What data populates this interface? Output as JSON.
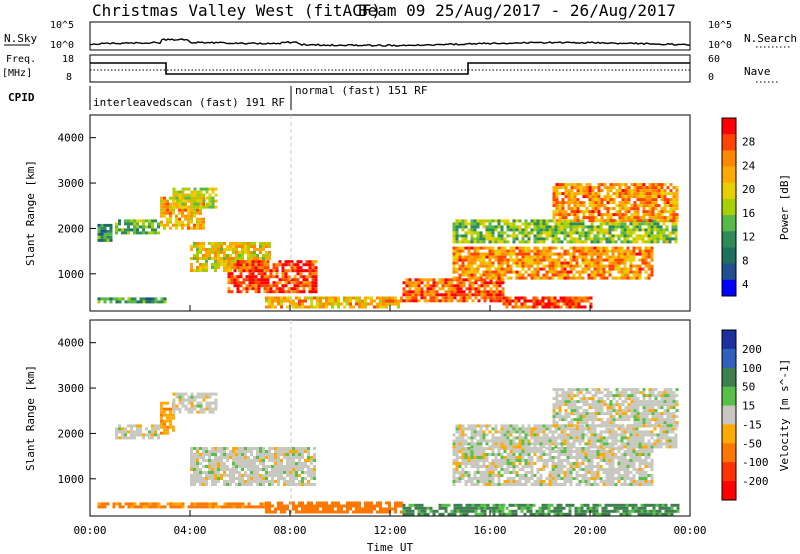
{
  "header": {
    "title": "Christmas Valley West (fitACF)",
    "beam": "Beam 09 25/Aug/2017 - 26/Aug/2017"
  },
  "nsky_panel": {
    "left_label": "N.Sky",
    "left_ticks": [
      "10^5",
      "10^0"
    ],
    "right_label": "N.Search",
    "right_ticks": [
      "10^5",
      "10^0"
    ]
  },
  "freq_panel": {
    "left_label_1": "Freq.",
    "left_label_2": "[MHz]",
    "left_ticks": [
      "18",
      "8"
    ],
    "right_label": "Nave",
    "right_ticks": [
      "60",
      "0"
    ]
  },
  "cpid": {
    "label": "CPID",
    "modes": [
      {
        "text": "interleavedscan (fast) 191 RF"
      },
      {
        "text": "normal (fast) 151 RF"
      }
    ]
  },
  "axes": {
    "ylabel": "Slant Range [km]",
    "yticks": [
      "4000",
      "3000",
      "2000",
      "1000"
    ],
    "xlabel": "Time UT",
    "xticks": [
      "00:00",
      "04:00",
      "08:00",
      "12:00",
      "16:00",
      "20:00",
      "00:00"
    ]
  },
  "power_scale": {
    "label": "Power [dB]",
    "ticks": [
      "28",
      "24",
      "20",
      "16",
      "12",
      "8",
      "4"
    ],
    "colors": [
      "#ff0000",
      "#ff4400",
      "#ff8800",
      "#ffaa00",
      "#e8d000",
      "#a8d000",
      "#58b848",
      "#2e8b57",
      "#1f6f5f",
      "#1f4f8f",
      "#0000ff"
    ]
  },
  "velocity_scale": {
    "label": "Velocity [m s^-1]",
    "ticks": [
      "200",
      "100",
      "50",
      "15",
      "-15",
      "-50",
      "-100",
      "-200"
    ],
    "colors": [
      "#1e2fa0",
      "#2f5fbf",
      "#3f7f4f",
      "#58c048",
      "#c8c8c0",
      "#ffaa00",
      "#ff7700",
      "#ff3300",
      "#ff0000"
    ]
  },
  "chart_data": [
    {
      "type": "heatmap",
      "title": "Power",
      "xlabel": "Time UT",
      "ylabel": "Slant Range [km]",
      "ylim": [
        180,
        4500
      ],
      "xlim": [
        0,
        24
      ],
      "colorbar_label": "Power [dB]",
      "colorbar_ticks": [
        4,
        8,
        12,
        16,
        20,
        24,
        28
      ],
      "regions": [
        {
          "t0": 0.3,
          "t1": 3.0,
          "r0": 350,
          "r1": 480,
          "power": 10
        },
        {
          "t0": 0.3,
          "t1": 0.8,
          "r0": 1750,
          "r1": 2100,
          "power": 10
        },
        {
          "t0": 1.0,
          "t1": 2.8,
          "r0": 1900,
          "r1": 2200,
          "power": 12
        },
        {
          "t0": 2.8,
          "t1": 4.5,
          "r0": 2000,
          "r1": 2700,
          "power": 20
        },
        {
          "t0": 3.3,
          "t1": 5.1,
          "r0": 2500,
          "r1": 2900,
          "power": 16
        },
        {
          "t0": 4.0,
          "t1": 7.2,
          "r0": 1100,
          "r1": 1700,
          "power": 18
        },
        {
          "t0": 5.5,
          "t1": 9.0,
          "r0": 600,
          "r1": 1300,
          "power": 26
        },
        {
          "t0": 7.0,
          "t1": 12.5,
          "r0": 250,
          "r1": 500,
          "power": 20
        },
        {
          "t0": 12.5,
          "t1": 16.5,
          "r0": 400,
          "r1": 900,
          "power": 24
        },
        {
          "t0": 14.5,
          "t1": 22.5,
          "r0": 900,
          "r1": 1600,
          "power": 22
        },
        {
          "t0": 14.5,
          "t1": 23.5,
          "r0": 1700,
          "r1": 2200,
          "power": 14
        },
        {
          "t0": 18.5,
          "t1": 23.5,
          "r0": 2200,
          "r1": 3000,
          "power": 22
        },
        {
          "t0": 16.5,
          "t1": 20.0,
          "r0": 250,
          "r1": 500,
          "power": 26
        }
      ]
    },
    {
      "type": "heatmap",
      "title": "Velocity",
      "xlabel": "Time UT",
      "ylabel": "Slant Range [km]",
      "ylim": [
        180,
        4500
      ],
      "xlim": [
        0,
        24
      ],
      "colorbar_label": "Velocity [m s^-1]",
      "colorbar_ticks": [
        -200,
        -100,
        -50,
        -15,
        15,
        50,
        100,
        200
      ],
      "regions": [
        {
          "t0": 0.3,
          "t1": 7.0,
          "r0": 350,
          "r1": 480,
          "velocity": -60
        },
        {
          "t0": 1.0,
          "t1": 2.8,
          "r0": 1900,
          "r1": 2200,
          "velocity": 0
        },
        {
          "t0": 2.8,
          "t1": 3.3,
          "r0": 2000,
          "r1": 2700,
          "velocity": -40
        },
        {
          "t0": 3.3,
          "t1": 5.1,
          "r0": 2500,
          "r1": 2900,
          "velocity": 0
        },
        {
          "t0": 4.0,
          "t1": 9.0,
          "r0": 900,
          "r1": 1700,
          "velocity": 0
        },
        {
          "t0": 7.0,
          "t1": 12.5,
          "r0": 250,
          "r1": 500,
          "velocity": -80
        },
        {
          "t0": 12.5,
          "t1": 16.5,
          "r0": 250,
          "r1": 450,
          "velocity": 40
        },
        {
          "t0": 14.5,
          "t1": 22.5,
          "r0": 900,
          "r1": 1700,
          "velocity": 0
        },
        {
          "t0": 14.5,
          "t1": 23.5,
          "r0": 1700,
          "r1": 2200,
          "velocity": 0
        },
        {
          "t0": 18.5,
          "t1": 23.5,
          "r0": 2200,
          "r1": 3000,
          "velocity": 0
        },
        {
          "t0": 16.5,
          "t1": 23.5,
          "r0": 250,
          "r1": 450,
          "velocity": 40
        }
      ]
    }
  ]
}
